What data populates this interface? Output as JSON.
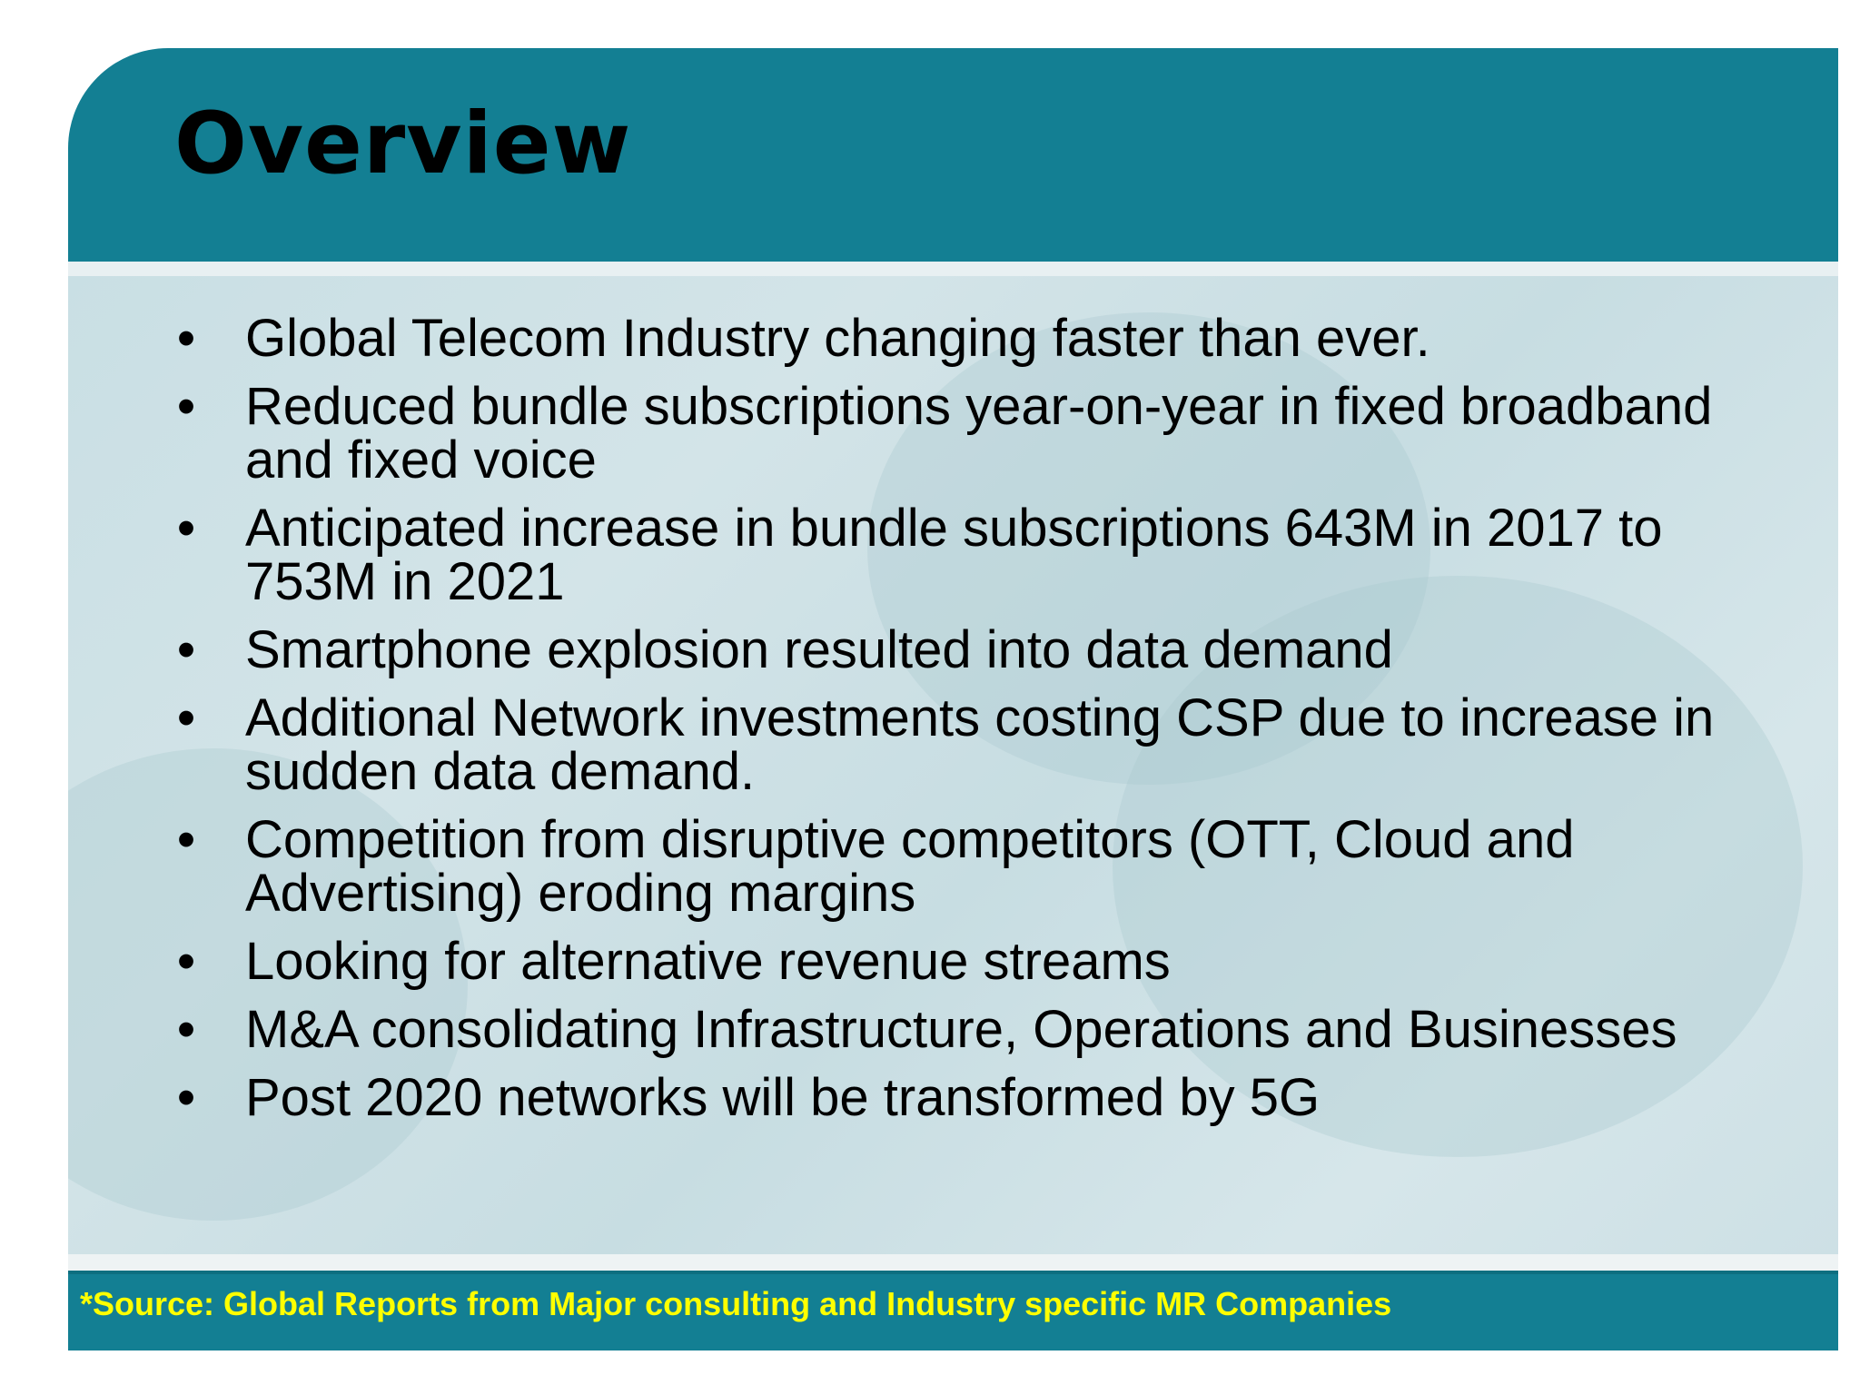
{
  "slide": {
    "title": "Overview",
    "bullets": [
      "Global Telecom Industry changing faster than ever.",
      "Reduced bundle subscriptions year-on-year in fixed broadband and fixed voice",
      "Anticipated increase in bundle subscriptions 643M in 2017 to 753M in 2021",
      "Smartphone explosion resulted into data demand",
      "Additional Network investments costing CSP due to increase in sudden data demand.",
      "Competition from disruptive competitors (OTT, Cloud and Advertising) eroding margins",
      "Looking for alternative revenue streams",
      "M&A consolidating Infrastructure, Operations and Businesses",
      "Post 2020 networks will be transformed by 5G"
    ],
    "bullet_glyph": "•",
    "source": "*Source: Global Reports from Major consulting and Industry specific MR Companies"
  },
  "colors": {
    "title_bar": "#137f93",
    "content_panel": "#cde0e5",
    "source_text": "#ffff00",
    "text": "#000000"
  }
}
